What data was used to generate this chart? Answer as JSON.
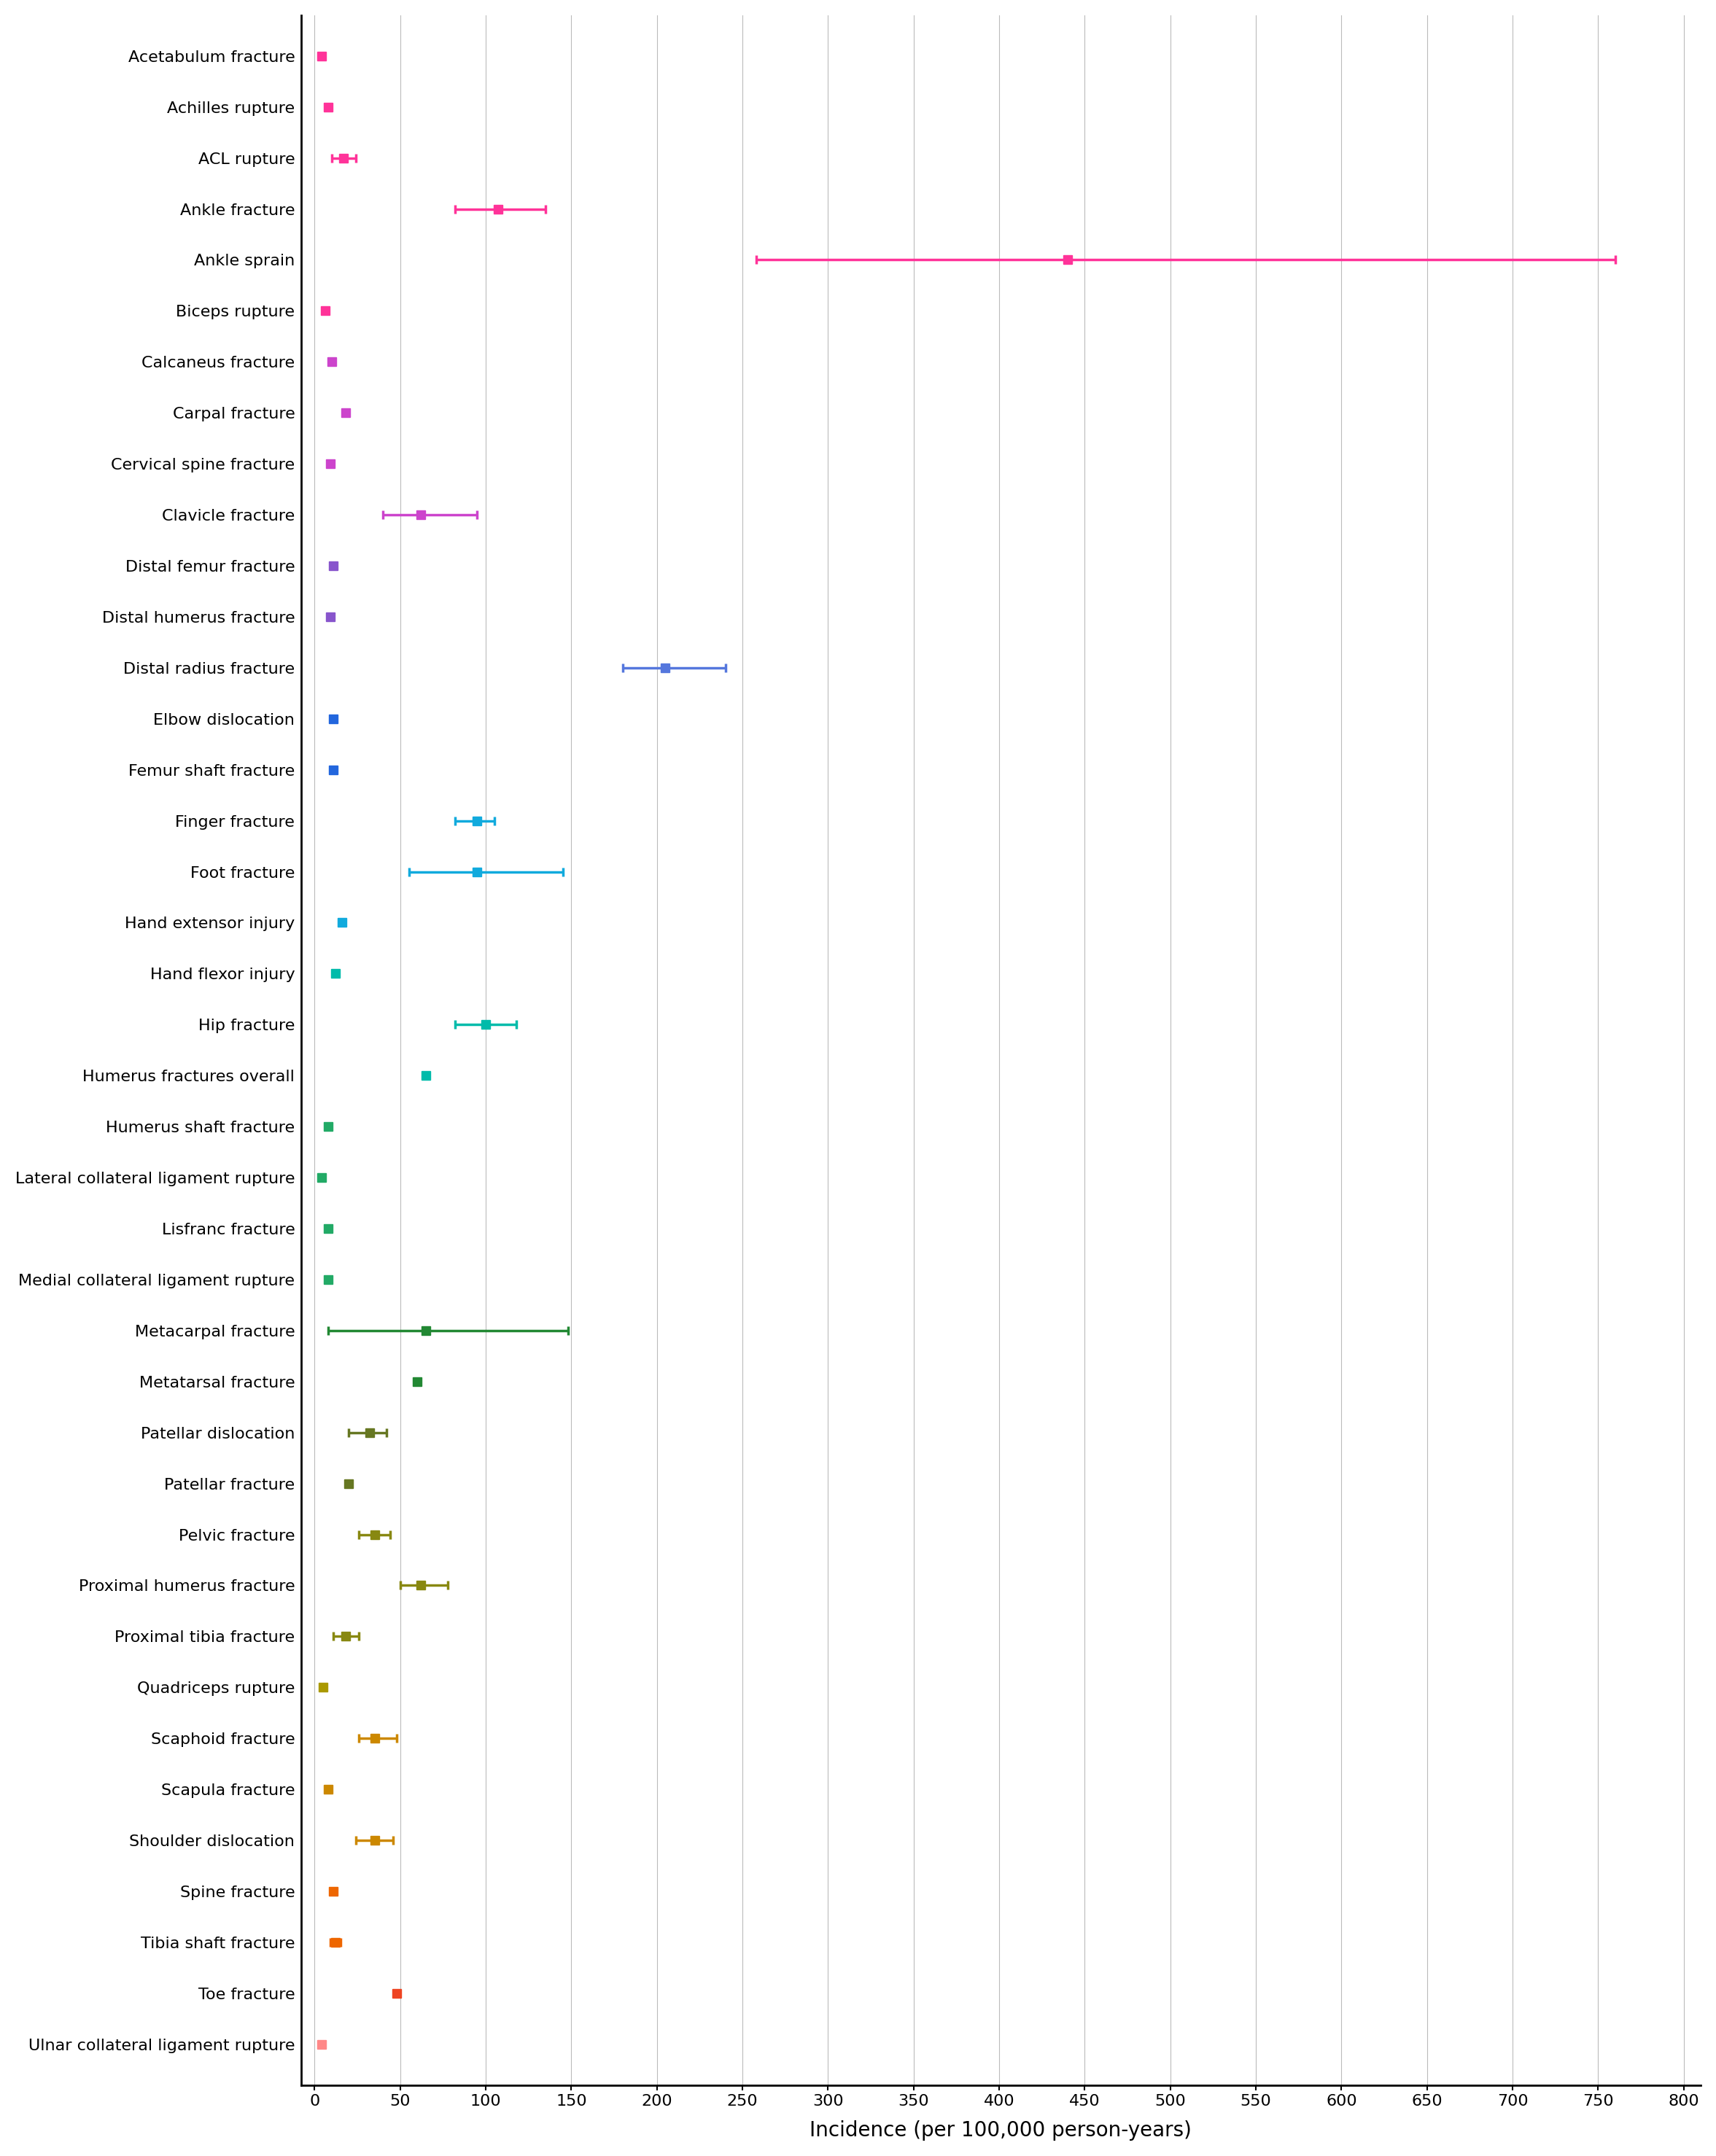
{
  "injuries": [
    {
      "name": "Acetabulum fracture",
      "value": 4,
      "ci_low": 4,
      "ci_high": 4,
      "color": "#FF3399"
    },
    {
      "name": "Achilles rupture",
      "value": 8,
      "ci_low": 8,
      "ci_high": 8,
      "color": "#FF3399"
    },
    {
      "name": "ACL rupture",
      "value": 17,
      "ci_low": 10,
      "ci_high": 24,
      "color": "#FF3399"
    },
    {
      "name": "Ankle fracture",
      "value": 107,
      "ci_low": 82,
      "ci_high": 135,
      "color": "#FF3399"
    },
    {
      "name": "Ankle sprain",
      "value": 440,
      "ci_low": 258,
      "ci_high": 760,
      "color": "#FF3399"
    },
    {
      "name": "Biceps rupture",
      "value": 6,
      "ci_low": 6,
      "ci_high": 6,
      "color": "#FF3399"
    },
    {
      "name": "Calcaneus fracture",
      "value": 10,
      "ci_low": 10,
      "ci_high": 10,
      "color": "#CC44CC"
    },
    {
      "name": "Carpal fracture",
      "value": 18,
      "ci_low": 18,
      "ci_high": 18,
      "color": "#CC44CC"
    },
    {
      "name": "Cervical spine fracture",
      "value": 9,
      "ci_low": 9,
      "ci_high": 9,
      "color": "#CC44CC"
    },
    {
      "name": "Clavicle fracture",
      "value": 62,
      "ci_low": 40,
      "ci_high": 95,
      "color": "#CC44CC"
    },
    {
      "name": "Distal femur fracture",
      "value": 11,
      "ci_low": 11,
      "ci_high": 11,
      "color": "#8855CC"
    },
    {
      "name": "Distal humerus fracture",
      "value": 9,
      "ci_low": 9,
      "ci_high": 9,
      "color": "#8855CC"
    },
    {
      "name": "Distal radius fracture",
      "value": 205,
      "ci_low": 180,
      "ci_high": 240,
      "color": "#5577DD"
    },
    {
      "name": "Elbow dislocation",
      "value": 11,
      "ci_low": 11,
      "ci_high": 11,
      "color": "#2266DD"
    },
    {
      "name": "Femur shaft fracture",
      "value": 11,
      "ci_low": 11,
      "ci_high": 11,
      "color": "#2266DD"
    },
    {
      "name": "Finger fracture",
      "value": 95,
      "ci_low": 82,
      "ci_high": 105,
      "color": "#11AADD"
    },
    {
      "name": "Foot fracture",
      "value": 95,
      "ci_low": 55,
      "ci_high": 145,
      "color": "#11AADD"
    },
    {
      "name": "Hand extensor injury",
      "value": 16,
      "ci_low": 16,
      "ci_high": 16,
      "color": "#11AADD"
    },
    {
      "name": "Hand flexor injury",
      "value": 12,
      "ci_low": 12,
      "ci_high": 12,
      "color": "#00BBAA"
    },
    {
      "name": "Hip fracture",
      "value": 100,
      "ci_low": 82,
      "ci_high": 118,
      "color": "#00BBAA"
    },
    {
      "name": "Humerus fractures overall",
      "value": 65,
      "ci_low": 65,
      "ci_high": 65,
      "color": "#00BBAA"
    },
    {
      "name": "Humerus shaft fracture",
      "value": 8,
      "ci_low": 8,
      "ci_high": 8,
      "color": "#22AA66"
    },
    {
      "name": "Lateral collateral ligament rupture",
      "value": 4,
      "ci_low": 4,
      "ci_high": 4,
      "color": "#22AA66"
    },
    {
      "name": "Lisfranc fracture",
      "value": 8,
      "ci_low": 8,
      "ci_high": 8,
      "color": "#22AA66"
    },
    {
      "name": "Medial collateral ligament rupture",
      "value": 8,
      "ci_low": 8,
      "ci_high": 8,
      "color": "#22AA66"
    },
    {
      "name": "Metacarpal fracture",
      "value": 65,
      "ci_low": 8,
      "ci_high": 148,
      "color": "#228833"
    },
    {
      "name": "Metatarsal fracture",
      "value": 60,
      "ci_low": 60,
      "ci_high": 60,
      "color": "#228833"
    },
    {
      "name": "Patellar dislocation",
      "value": 32,
      "ci_low": 20,
      "ci_high": 42,
      "color": "#667722"
    },
    {
      "name": "Patellar fracture",
      "value": 20,
      "ci_low": 20,
      "ci_high": 20,
      "color": "#667722"
    },
    {
      "name": "Pelvic fracture",
      "value": 35,
      "ci_low": 26,
      "ci_high": 44,
      "color": "#888811"
    },
    {
      "name": "Proximal humerus fracture",
      "value": 62,
      "ci_low": 50,
      "ci_high": 78,
      "color": "#888811"
    },
    {
      "name": "Proximal tibia fracture",
      "value": 18,
      "ci_low": 11,
      "ci_high": 26,
      "color": "#888811"
    },
    {
      "name": "Quadriceps rupture",
      "value": 5,
      "ci_low": 5,
      "ci_high": 5,
      "color": "#AA9900"
    },
    {
      "name": "Scaphoid fracture",
      "value": 35,
      "ci_low": 26,
      "ci_high": 48,
      "color": "#CC8800"
    },
    {
      "name": "Scapula fracture",
      "value": 8,
      "ci_low": 8,
      "ci_high": 8,
      "color": "#CC8800"
    },
    {
      "name": "Shoulder dislocation",
      "value": 35,
      "ci_low": 24,
      "ci_high": 46,
      "color": "#CC8800"
    },
    {
      "name": "Spine fracture",
      "value": 11,
      "ci_low": 11,
      "ci_high": 11,
      "color": "#EE6600"
    },
    {
      "name": "Tibia shaft fracture",
      "value": 12,
      "ci_low": 9,
      "ci_high": 15,
      "color": "#EE6600"
    },
    {
      "name": "Toe fracture",
      "value": 48,
      "ci_low": 48,
      "ci_high": 48,
      "color": "#EE4422"
    },
    {
      "name": "Ulnar collateral ligament rupture",
      "value": 4,
      "ci_low": 4,
      "ci_high": 4,
      "color": "#FF8888"
    }
  ],
  "x_ticks": [
    0,
    50,
    100,
    150,
    200,
    250,
    300,
    350,
    400,
    450,
    500,
    550,
    600,
    650,
    700,
    750,
    800
  ],
  "xlabel": "Incidence (per 100,000 person-years)",
  "xlim": [
    -8,
    810
  ],
  "background_color": "#ffffff",
  "grid_color": "#bbbbbb",
  "spine_color": "#000000"
}
